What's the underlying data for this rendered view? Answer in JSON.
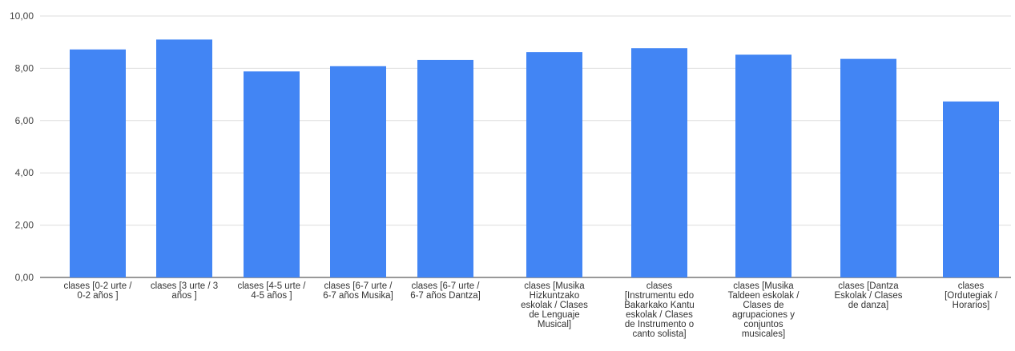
{
  "chart_data": {
    "type": "bar",
    "title": "",
    "xlabel": "",
    "ylabel": "",
    "ylim": [
      0,
      10
    ],
    "yticks": [
      "0,00",
      "2,00",
      "4,00",
      "6,00",
      "8,00",
      "10,00"
    ],
    "grid": true,
    "legend": "none",
    "bar_color": "#4285f4",
    "categories": [
      [
        "clases [0-2 urte /",
        "0-2 años ]"
      ],
      [
        "clases [3 urte / 3",
        "años ]"
      ],
      [
        "clases [4-5 urte /",
        "4-5 años ]"
      ],
      [
        "clases [6-7 urte /",
        "6-7 años Musika]"
      ],
      [
        "clases [6-7 urte /",
        "6-7 años Dantza]"
      ],
      [
        "clases [Musika",
        "Hizkuntzako",
        "eskolak / Clases",
        "de Lenguaje",
        "Musical]"
      ],
      [
        "clases",
        "[Instrumentu edo",
        "Bakarkako Kantu",
        "eskolak / Clases",
        "de Instrumento o",
        "canto solista]"
      ],
      [
        "clases [Musika",
        "Taldeen eskolak /",
        "Clases de",
        "agrupaciones y",
        "conjuntos",
        "musicales]"
      ],
      [
        "clases [Dantza",
        "Eskolak / Clases",
        "de danza]"
      ],
      [
        "clases",
        "[Ordutegiak /",
        "Horarios]"
      ]
    ],
    "values": [
      8.72,
      9.1,
      7.88,
      8.08,
      8.32,
      8.62,
      8.77,
      8.52,
      8.36,
      6.73
    ]
  }
}
